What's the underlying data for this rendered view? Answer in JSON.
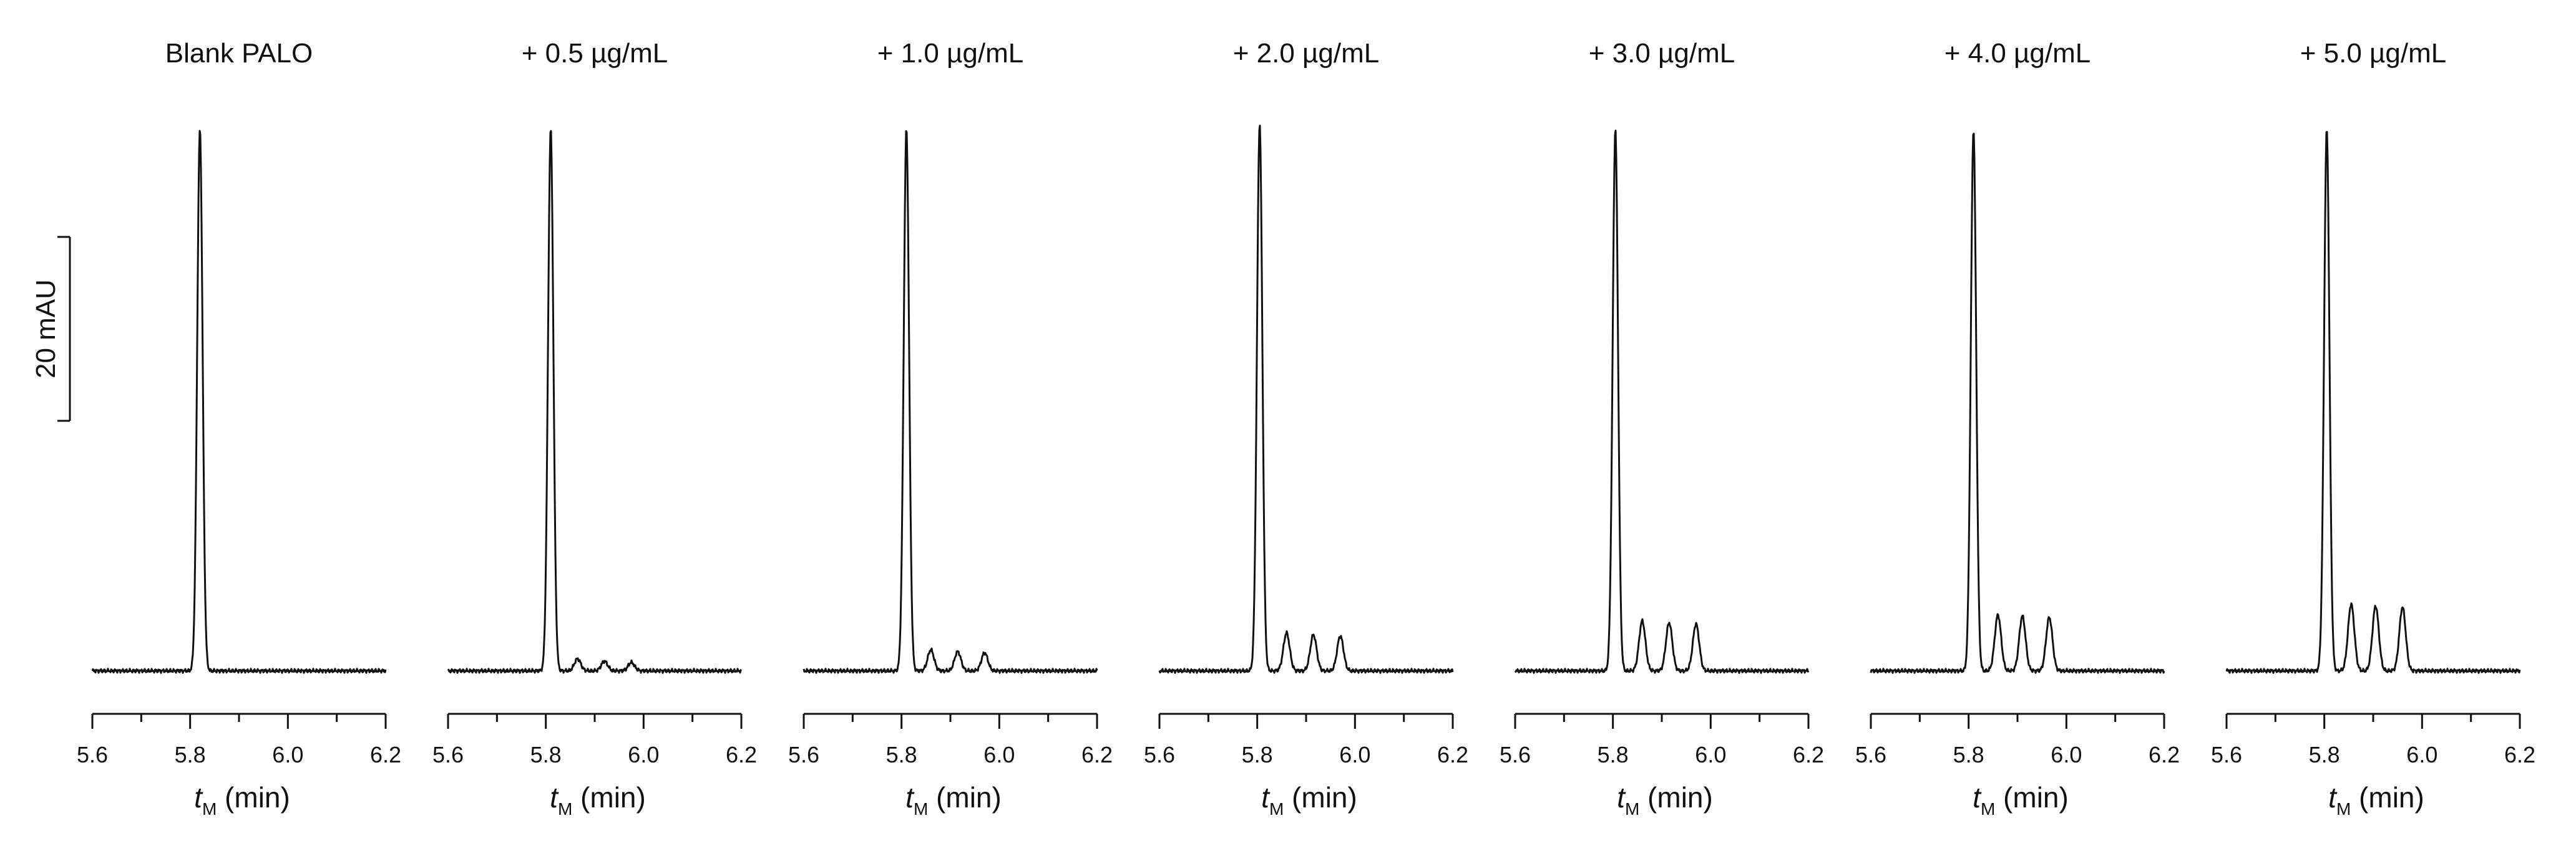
{
  "figure": {
    "scale_bar_label": "20 mAU",
    "xlabel_var": "t",
    "xlabel_sub": "M",
    "xlabel_unit": " (min)",
    "trace_color": "#111111"
  },
  "chart_data": [
    {
      "type": "line",
      "title": "Blank PALO",
      "xlim": [
        5.6,
        6.2
      ],
      "xticks": [
        "5.6",
        "5.8",
        "6.0",
        "6.2"
      ],
      "ylim": [
        0,
        95
      ],
      "baseline": 3,
      "peaks": [
        {
          "x": 5.82,
          "y": 93
        }
      ],
      "scale_bar_mAU": 20
    },
    {
      "type": "line",
      "title": "+ 0.5 µg/mL",
      "xlim": [
        5.6,
        6.2
      ],
      "xticks": [
        "5.6",
        "5.8",
        "6.0",
        "6.2"
      ],
      "ylim": [
        0,
        95
      ],
      "baseline": 3,
      "peaks": [
        {
          "x": 5.81,
          "y": 93
        },
        {
          "x": 5.865,
          "y": 5
        },
        {
          "x": 5.92,
          "y": 4.6
        },
        {
          "x": 5.975,
          "y": 4.4
        }
      ]
    },
    {
      "type": "line",
      "title": "+ 1.0 µg/mL",
      "xlim": [
        5.6,
        6.2
      ],
      "xticks": [
        "5.6",
        "5.8",
        "6.0",
        "6.2"
      ],
      "ylim": [
        0,
        95
      ],
      "baseline": 3,
      "peaks": [
        {
          "x": 5.81,
          "y": 93
        },
        {
          "x": 5.86,
          "y": 6.5
        },
        {
          "x": 5.915,
          "y": 6.2
        },
        {
          "x": 5.97,
          "y": 6
        }
      ]
    },
    {
      "type": "line",
      "title": "+ 2.0 µg/mL",
      "xlim": [
        5.6,
        6.2
      ],
      "xticks": [
        "5.6",
        "5.8",
        "6.0",
        "6.2"
      ],
      "ylim": [
        0,
        95
      ],
      "baseline": 3,
      "peaks": [
        {
          "x": 5.805,
          "y": 94
        },
        {
          "x": 5.86,
          "y": 9.3
        },
        {
          "x": 5.915,
          "y": 9
        },
        {
          "x": 5.97,
          "y": 8.8
        }
      ]
    },
    {
      "type": "line",
      "title": "+ 3.0 µg/mL",
      "xlim": [
        5.6,
        6.2
      ],
      "xticks": [
        "5.6",
        "5.8",
        "6.0",
        "6.2"
      ],
      "ylim": [
        0,
        95
      ],
      "baseline": 3,
      "peaks": [
        {
          "x": 5.805,
          "y": 93
        },
        {
          "x": 5.86,
          "y": 11.3
        },
        {
          "x": 5.915,
          "y": 11
        },
        {
          "x": 5.97,
          "y": 10.8
        }
      ]
    },
    {
      "type": "line",
      "title": "+ 4.0 µg/mL",
      "xlim": [
        5.6,
        6.2
      ],
      "xticks": [
        "5.6",
        "5.8",
        "6.0",
        "6.2"
      ],
      "ylim": [
        0,
        95
      ],
      "baseline": 3,
      "peaks": [
        {
          "x": 5.81,
          "y": 93
        },
        {
          "x": 5.86,
          "y": 12.3
        },
        {
          "x": 5.91,
          "y": 12.1
        },
        {
          "x": 5.965,
          "y": 11.9
        }
      ]
    },
    {
      "type": "line",
      "title": "+ 5.0 µg/mL",
      "xlim": [
        5.6,
        6.2
      ],
      "xticks": [
        "5.6",
        "5.8",
        "6.0",
        "6.2"
      ],
      "ylim": [
        0,
        95
      ],
      "baseline": 3,
      "peaks": [
        {
          "x": 5.805,
          "y": 93
        },
        {
          "x": 5.855,
          "y": 14.1
        },
        {
          "x": 5.905,
          "y": 13.8
        },
        {
          "x": 5.96,
          "y": 13.6
        }
      ]
    }
  ]
}
